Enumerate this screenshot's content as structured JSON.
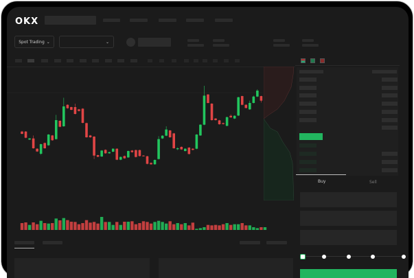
{
  "header": {
    "logo": "OKX",
    "market_selector": "Spot Trading"
  },
  "order_form": {
    "tabs": [
      {
        "label": "Buy",
        "active": true
      },
      {
        "label": "Sell",
        "active": false
      }
    ],
    "slider_level": 0,
    "slider_stops": 5
  },
  "colors": {
    "up": "#22c55e",
    "down": "#e04545",
    "background": "#1b1b1b",
    "accent": "#22b55f"
  },
  "chart": {
    "type": "candlestick",
    "candles": [
      [
        155,
        158,
        143,
        145
      ],
      [
        155,
        157,
        126,
        128
      ],
      [
        120,
        127,
        118,
        125
      ],
      [
        125,
        138,
        80,
        82
      ],
      [
        80,
        82,
        66,
        68
      ],
      [
        58,
        102,
        53,
        100
      ],
      [
        105,
        107,
        80,
        82
      ],
      [
        95,
        144,
        93,
        142
      ],
      [
        138,
        140,
        115,
        117
      ],
      [
        122,
        228,
        120,
        205
      ],
      [
        202,
        204,
        174,
        176
      ],
      [
        178,
        303,
        176,
        265
      ],
      [
        272,
        274,
        255,
        257
      ],
      [
        262,
        264,
        248,
        250
      ],
      [
        262,
        277,
        230,
        232
      ],
      [
        252,
        254,
        243,
        245
      ],
      [
        255,
        257,
        191,
        193
      ],
      [
        192,
        194,
        128,
        130
      ],
      [
        138,
        140,
        128,
        130
      ],
      [
        133,
        135,
        35,
        50
      ],
      [
        52,
        54,
        43,
        45
      ],
      [
        46,
        74,
        44,
        72
      ],
      [
        75,
        77,
        58,
        60
      ],
      [
        60,
        67,
        58,
        65
      ],
      [
        67,
        82,
        65,
        80
      ],
      [
        80,
        82,
        30,
        32
      ],
      [
        32,
        46,
        30,
        44
      ],
      [
        48,
        50,
        36,
        38
      ],
      [
        42,
        72,
        40,
        70
      ],
      [
        72,
        74,
        63,
        65
      ],
      [
        74,
        76,
        42,
        44
      ],
      [
        74,
        76,
        46,
        48
      ],
      [
        50,
        52,
        46,
        48
      ],
      [
        47,
        49,
        12,
        14
      ],
      [
        18,
        20,
        10,
        12
      ],
      [
        12,
        33,
        10,
        31
      ],
      [
        35,
        135,
        33,
        122
      ],
      [
        125,
        139,
        123,
        137
      ],
      [
        137,
        178,
        135,
        164
      ],
      [
        160,
        162,
        128,
        130
      ],
      [
        147,
        149,
        80,
        82
      ],
      [
        78,
        86,
        74,
        82
      ],
      [
        88,
        90,
        75,
        77
      ],
      [
        70,
        82,
        68,
        80
      ],
      [
        85,
        87,
        55,
        57
      ],
      [
        80,
        82,
        73,
        75
      ],
      [
        80,
        144,
        78,
        142
      ],
      [
        138,
        187,
        136,
        185
      ],
      [
        185,
        355,
        183,
        312
      ],
      [
        317,
        319,
        278,
        280
      ],
      [
        277,
        279,
        203,
        205
      ],
      [
        212,
        214,
        203,
        205
      ],
      [
        204,
        206,
        185,
        187
      ],
      [
        192,
        194,
        186,
        188
      ],
      [
        180,
        220,
        178,
        218
      ],
      [
        224,
        230,
        215,
        217
      ],
      [
        212,
        226,
        210,
        224
      ],
      [
        225,
        307,
        223,
        305
      ],
      [
        310,
        312,
        270,
        272
      ],
      [
        272,
        274,
        256,
        258
      ],
      [
        252,
        290,
        250,
        280
      ],
      [
        280,
        312,
        278,
        308
      ],
      [
        308,
        340,
        306,
        334
      ],
      [
        310,
        312,
        282,
        290
      ],
      [
        284,
        310,
        282,
        302
      ]
    ],
    "volumes": [
      30,
      33,
      22,
      33,
      25,
      40,
      30,
      28,
      30,
      50,
      42,
      52,
      43,
      36,
      35,
      25,
      30,
      43,
      32,
      35,
      28,
      57,
      35,
      35,
      22,
      35,
      22,
      36,
      36,
      38,
      25,
      30,
      38,
      35,
      28,
      35,
      40,
      35,
      28,
      38,
      25,
      30,
      25,
      30,
      20,
      32,
      5,
      8,
      12,
      22,
      20,
      22,
      20,
      25,
      30,
      22,
      25,
      25,
      30,
      20,
      20,
      12,
      8,
      12,
      12
    ]
  }
}
